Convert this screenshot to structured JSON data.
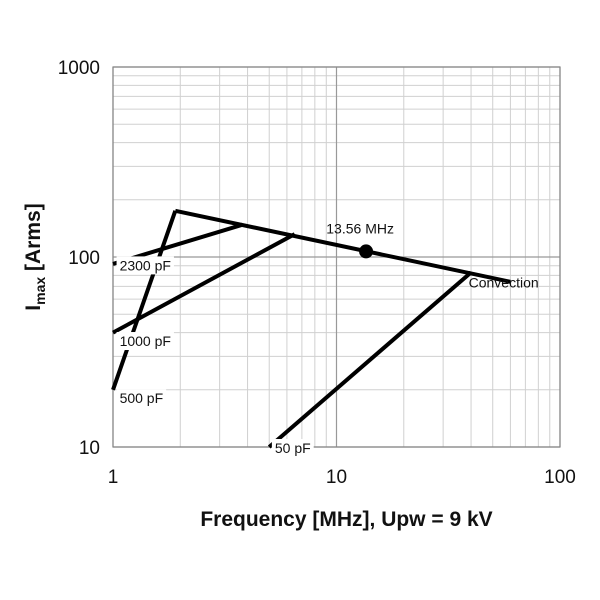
{
  "chart_data": {
    "type": "line",
    "title": "",
    "xlabel": "Frequency [MHz], Upw = 9 kV",
    "ylabel_main": "I",
    "ylabel_sub": "max",
    "ylabel_rest": " [Arms]",
    "x_scale": "log",
    "y_scale": "log",
    "xlim": [
      1,
      100
    ],
    "ylim": [
      10,
      1000
    ],
    "x_ticks": [
      {
        "value": 1,
        "label": "1"
      },
      {
        "value": 10,
        "label": "10"
      },
      {
        "value": 100,
        "label": "100"
      }
    ],
    "y_ticks": [
      {
        "value": 10,
        "label": "10"
      },
      {
        "value": 100,
        "label": "100"
      },
      {
        "value": 1000,
        "label": "1000"
      }
    ],
    "grid": true,
    "legend": "none",
    "series": [
      {
        "name": "Convection",
        "points": [
          [
            1.9,
            175
          ],
          [
            60,
            74
          ]
        ]
      },
      {
        "name": "2300 pF",
        "points": [
          [
            1,
            92
          ],
          [
            3.8,
            148
          ]
        ]
      },
      {
        "name": "1000 pF",
        "points": [
          [
            1,
            40
          ],
          [
            6.5,
            132
          ]
        ]
      },
      {
        "name": "500 pF",
        "points": [
          [
            1,
            20
          ],
          [
            1.9,
            175
          ]
        ]
      },
      {
        "name": "50 pF",
        "points": [
          [
            5,
            10
          ],
          [
            40,
            83
          ]
        ]
      }
    ],
    "marker": {
      "label": "13.56 MHz",
      "x": 13.56,
      "y": 107
    },
    "annotations": [
      {
        "text": "2300 pF",
        "x": 1.07,
        "y": 85
      },
      {
        "text": "1000 pF",
        "x": 1.07,
        "y": 34
      },
      {
        "text": "500 pF",
        "x": 1.07,
        "y": 17
      },
      {
        "text": "50 pF",
        "x": 5.3,
        "y": 9.3
      },
      {
        "text": "Convection",
        "x": 39,
        "y": 69
      },
      {
        "text": "13.56 MHz",
        "x": 9,
        "y": 133
      }
    ]
  }
}
